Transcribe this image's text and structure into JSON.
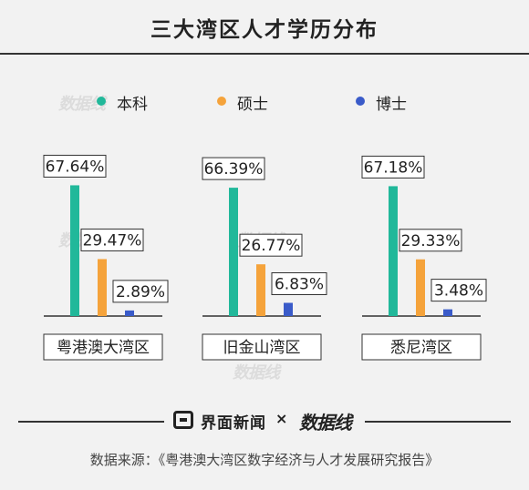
{
  "header": {
    "title": "三大湾区人才学历分布"
  },
  "legend": [
    {
      "label": "本科",
      "color": "#21b89a"
    },
    {
      "label": "硕士",
      "color": "#f5a33b"
    },
    {
      "label": "博士",
      "color": "#3a5bc9"
    }
  ],
  "chart_data": {
    "type": "bar",
    "title": "三大湾区人才学历分布",
    "categories": [
      "粤港澳大湾区",
      "旧金山湾区",
      "悉尼湾区"
    ],
    "series": [
      {
        "name": "本科",
        "values": [
          67.64,
          66.39,
          67.18
        ],
        "color": "#21b89a"
      },
      {
        "name": "硕士",
        "values": [
          29.47,
          26.77,
          29.33
        ],
        "color": "#f5a33b"
      },
      {
        "name": "博士",
        "values": [
          2.89,
          6.83,
          3.48
        ],
        "color": "#3a5bc9"
      }
    ],
    "value_labels": [
      [
        "67.64%",
        "29.47%",
        "2.89%"
      ],
      [
        "66.39%",
        "26.77%",
        "6.83%"
      ],
      [
        "67.18%",
        "29.33%",
        "3.48%"
      ]
    ],
    "ylim": [
      0,
      70
    ],
    "grid": false,
    "legend_position": "top"
  },
  "footer": {
    "brand": "界面新闻",
    "separator": "×",
    "logo": "数据线",
    "source": "数据来源：《粤港澳大湾区数字经济与人才发展研究报告》"
  },
  "watermark": {
    "text": "数据线"
  }
}
